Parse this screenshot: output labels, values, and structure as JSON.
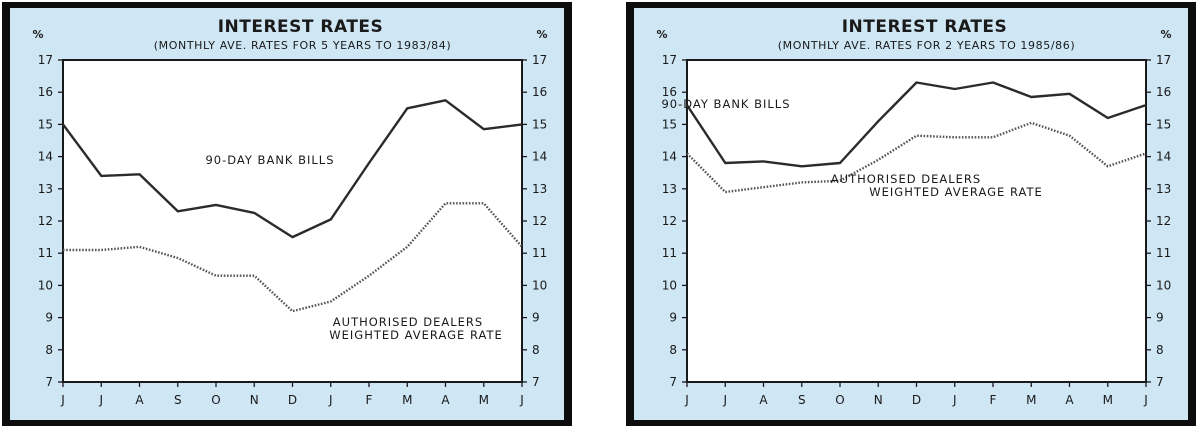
{
  "chart_data": [
    {
      "type": "line",
      "title": "INTEREST RATES",
      "subtitle": "(MONTHLY AVE. RATES FOR 5 YEARS TO 1983/84)",
      "ylabel_left": "%",
      "ylabel_right": "%",
      "ylim": [
        7,
        17
      ],
      "yticks": [
        7,
        8,
        9,
        10,
        11,
        12,
        13,
        14,
        15,
        16,
        17
      ],
      "categories": [
        "J",
        "J",
        "A",
        "S",
        "O",
        "N",
        "D",
        "J",
        "F",
        "M",
        "A",
        "M",
        "J"
      ],
      "series": [
        {
          "name": "90-DAY BANK BILLS",
          "style": "solid",
          "color": "#2b2b2b",
          "values": [
            15.0,
            13.4,
            13.45,
            12.3,
            12.5,
            12.25,
            11.5,
            12.05,
            13.8,
            15.5,
            15.75,
            14.85,
            15.0
          ]
        },
        {
          "name": "AUTHORISED DEALERS WEIGHTED AVERAGE RATE",
          "style": "dotted",
          "color": "#555555",
          "values": [
            11.1,
            11.1,
            11.2,
            10.85,
            10.3,
            10.3,
            9.2,
            9.5,
            10.3,
            11.2,
            12.55,
            12.55,
            11.2
          ]
        }
      ],
      "labels": [
        "90-DAY BANK BILLS",
        "AUTHORISED DEALERS",
        "WEIGHTED AVERAGE RATE"
      ],
      "grid": false
    },
    {
      "type": "line",
      "title": "INTEREST RATES",
      "subtitle": "(MONTHLY AVE. RATES FOR 2 YEARS TO 1985/86)",
      "ylabel_left": "%",
      "ylabel_right": "%",
      "ylim": [
        7,
        17
      ],
      "yticks": [
        7,
        8,
        9,
        10,
        11,
        12,
        13,
        14,
        15,
        16,
        17
      ],
      "categories": [
        "J",
        "J",
        "A",
        "S",
        "O",
        "N",
        "D",
        "J",
        "F",
        "M",
        "A",
        "M",
        "J"
      ],
      "series": [
        {
          "name": "90-DAY BANK BILLS",
          "style": "solid",
          "color": "#2b2b2b",
          "values": [
            15.6,
            13.8,
            13.85,
            13.7,
            13.8,
            15.1,
            16.3,
            16.1,
            16.3,
            15.85,
            15.95,
            15.2,
            15.6
          ]
        },
        {
          "name": "AUTHORISED DEALERS WEIGHTED AVERAGE RATE",
          "style": "dotted",
          "color": "#555555",
          "values": [
            14.1,
            12.9,
            13.05,
            13.2,
            13.25,
            13.9,
            14.65,
            14.6,
            14.6,
            15.05,
            14.65,
            13.7,
            14.1
          ]
        }
      ],
      "labels": [
        "90-DAY BANK BILLS",
        "AUTHORISED DEALERS",
        "WEIGHTED AVERAGE RATE"
      ],
      "grid": false
    }
  ],
  "colors": {
    "panel_bg": "#cfe6f4",
    "plot_bg": "#ffffff",
    "frame": "#0d0d0d"
  }
}
